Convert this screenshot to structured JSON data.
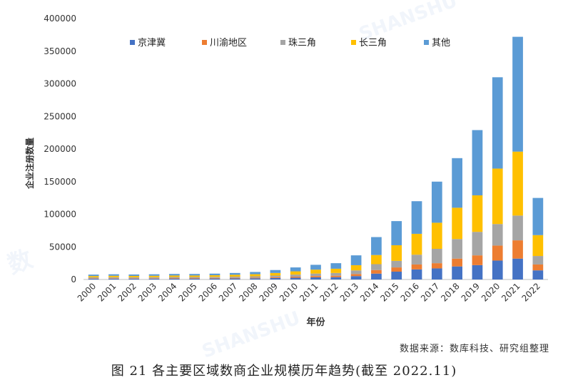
{
  "chart_data": {
    "type": "bar",
    "stacked": true,
    "categories": [
      "2000",
      "2001",
      "2002",
      "2003",
      "2004",
      "2005",
      "2006",
      "2007",
      "2008",
      "2009",
      "2010",
      "2011",
      "2012",
      "2013",
      "2014",
      "2015",
      "2016",
      "2017",
      "2018",
      "2019",
      "2020",
      "2021",
      "2022"
    ],
    "series": [
      {
        "name": "京津冀",
        "color": "#4472C4",
        "values": [
          1200,
          1300,
          1300,
          1300,
          1400,
          1400,
          1500,
          1600,
          1800,
          2200,
          2700,
          3300,
          3600,
          5200,
          9000,
          12000,
          15500,
          17000,
          20000,
          22000,
          29000,
          32000,
          14000
        ]
      },
      {
        "name": "川渝地区",
        "color": "#ED7D31",
        "values": [
          700,
          700,
          700,
          700,
          800,
          800,
          800,
          900,
          1000,
          1300,
          1600,
          2000,
          2200,
          3200,
          5500,
          6500,
          7500,
          8000,
          12000,
          15000,
          23000,
          28000,
          9000
        ]
      },
      {
        "name": "珠三角",
        "color": "#A5A5A5",
        "values": [
          1400,
          1500,
          1400,
          1500,
          1600,
          1600,
          1700,
          1900,
          2100,
          2500,
          3200,
          3800,
          4200,
          5500,
          9000,
          10000,
          15000,
          22000,
          30000,
          36000,
          33000,
          38000,
          13000
        ]
      },
      {
        "name": "长三角",
        "color": "#FFC000",
        "values": [
          2000,
          2200,
          2100,
          2200,
          2300,
          2300,
          2500,
          2800,
          3200,
          4000,
          5000,
          6000,
          6500,
          8000,
          14000,
          24000,
          32000,
          40000,
          48000,
          56000,
          85000,
          98000,
          32000
        ]
      },
      {
        "name": "其他",
        "color": "#5B9BD5",
        "values": [
          2200,
          2300,
          2200,
          2300,
          2400,
          2400,
          2500,
          2800,
          3400,
          4500,
          6000,
          7400,
          8500,
          15100,
          27500,
          37000,
          50000,
          63000,
          76000,
          100000,
          140000,
          176000,
          57000
        ]
      }
    ],
    "xlabel": "年份",
    "ylabel": "企业注册数量",
    "ylim": [
      0,
      400000
    ],
    "yticks": [
      0,
      50000,
      100000,
      150000,
      200000,
      250000,
      300000,
      350000,
      400000
    ],
    "legend": "top",
    "grid": false
  },
  "source_text": "数据来源：数库科技、研究组整理",
  "caption": "图 21  各主要区域数商企业规模历年趋势(截至 2022.11)",
  "watermark_text": "SHANSHU"
}
